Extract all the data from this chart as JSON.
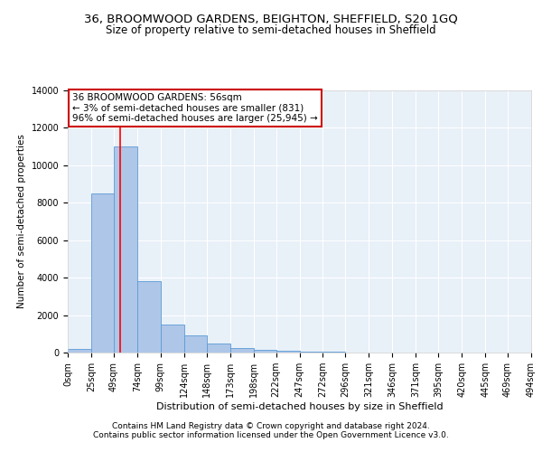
{
  "title1": "36, BROOMWOOD GARDENS, BEIGHTON, SHEFFIELD, S20 1GQ",
  "title2": "Size of property relative to semi-detached houses in Sheffield",
  "xlabel": "Distribution of semi-detached houses by size in Sheffield",
  "ylabel": "Number of semi-detached properties",
  "footnote1": "Contains HM Land Registry data © Crown copyright and database right 2024.",
  "footnote2": "Contains public sector information licensed under the Open Government Licence v3.0.",
  "annotation_line1": "36 BROOMWOOD GARDENS: 56sqm",
  "annotation_line2": "← 3% of semi-detached houses are smaller (831)",
  "annotation_line3": "96% of semi-detached houses are larger (25,945) →",
  "bar_edges": [
    0,
    25,
    49,
    74,
    99,
    124,
    148,
    173,
    198,
    222,
    247,
    272,
    296,
    321,
    346,
    371,
    395,
    420,
    445,
    469,
    494
  ],
  "bar_heights": [
    200,
    8500,
    11000,
    3800,
    1500,
    900,
    500,
    220,
    150,
    80,
    50,
    30,
    10,
    5,
    3,
    2,
    1,
    1,
    1,
    0
  ],
  "bar_color": "#aec6e8",
  "bar_edgecolor": "#5b9bd5",
  "red_line_x": 56,
  "ylim": [
    0,
    14000
  ],
  "yticks": [
    0,
    2000,
    4000,
    6000,
    8000,
    10000,
    12000,
    14000
  ],
  "annotation_box_color": "#ffffff",
  "annotation_box_edgecolor": "#cc0000",
  "background_color": "#e8f0f8",
  "grid_color": "#ffffff",
  "title1_fontsize": 9.5,
  "title2_fontsize": 8.5,
  "xlabel_fontsize": 8,
  "ylabel_fontsize": 7.5,
  "annotation_fontsize": 7.5,
  "footnote_fontsize": 6.5,
  "tick_fontsize": 7
}
